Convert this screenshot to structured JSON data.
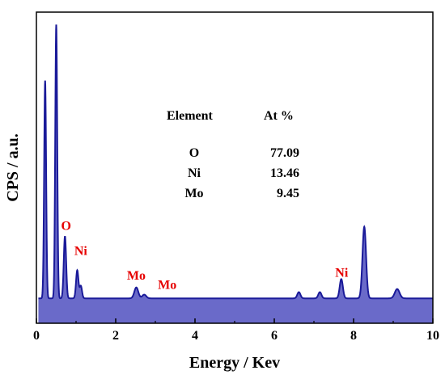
{
  "chart_data": {
    "type": "area",
    "xlabel": "Energy / Kev",
    "ylabel": "CPS / a.u.",
    "xlim": [
      0,
      10
    ],
    "ylim": [
      0,
      100
    ],
    "x_ticks": [
      0,
      2,
      4,
      6,
      8,
      10
    ],
    "grid": false,
    "baseline": 8,
    "fill_color": "#6a6ac9",
    "line_color": "#1a1a99",
    "peaks": [
      {
        "x": 0.22,
        "height": 70,
        "width": 0.025
      },
      {
        "x": 0.5,
        "height": 88,
        "width": 0.025
      },
      {
        "x": 0.72,
        "height": 20,
        "width": 0.03
      },
      {
        "x": 1.03,
        "height": 9,
        "width": 0.03
      },
      {
        "x": 1.12,
        "height": 4,
        "width": 0.03
      },
      {
        "x": 2.52,
        "height": 3.5,
        "width": 0.05
      },
      {
        "x": 2.72,
        "height": 1.2,
        "width": 0.05
      },
      {
        "x": 6.62,
        "height": 2,
        "width": 0.04
      },
      {
        "x": 7.15,
        "height": 2,
        "width": 0.04
      },
      {
        "x": 7.69,
        "height": 6.2,
        "width": 0.04
      },
      {
        "x": 8.27,
        "height": 23,
        "width": 0.045
      },
      {
        "x": 9.1,
        "height": 3,
        "width": 0.06
      }
    ],
    "peak_labels": [
      {
        "text": "O",
        "x": 0.75,
        "y": 30
      },
      {
        "text": "Ni",
        "x": 1.12,
        "y": 22
      },
      {
        "text": "Mo",
        "x": 2.52,
        "y": 14
      },
      {
        "text": "Mo",
        "x": 3.3,
        "y": 11
      },
      {
        "text": "Ni",
        "x": 7.7,
        "y": 15
      }
    ],
    "annotation_color": "#e60000",
    "table": {
      "headers": [
        "Element",
        "At %"
      ],
      "rows": [
        [
          "O",
          "77.09"
        ],
        [
          "Ni",
          "13.46"
        ],
        [
          "Mo",
          "9.45"
        ]
      ]
    }
  }
}
